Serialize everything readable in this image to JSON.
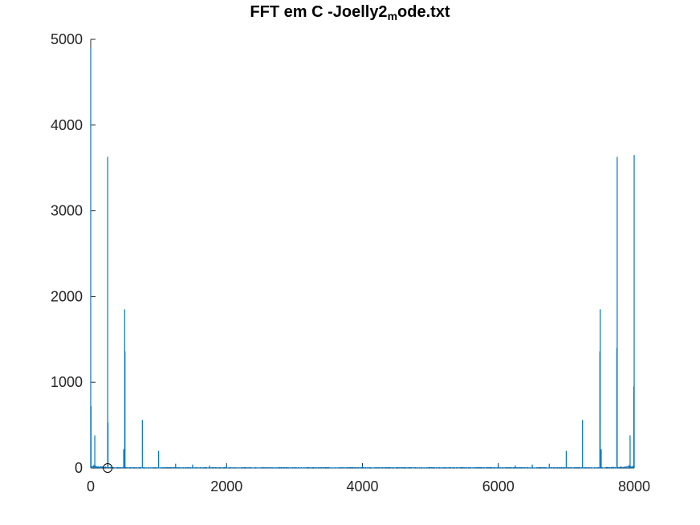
{
  "chart_data": {
    "type": "line",
    "title": "FFT em C -Joelly2",
    "title_subscript": "m",
    "title_suffix": "ode.txt",
    "xlabel": "",
    "ylabel": "",
    "xlim": [
      0,
      8000
    ],
    "ylim": [
      0,
      5000
    ],
    "xticks": [
      0,
      2000,
      4000,
      6000,
      8000
    ],
    "xtick_labels": [
      "0",
      "2000",
      "4000",
      "6000",
      "8000"
    ],
    "yticks": [
      0,
      1000,
      2000,
      3000,
      4000,
      5000
    ],
    "ytick_labels": [
      "0",
      "1000",
      "2000",
      "3000",
      "4000",
      "5000"
    ],
    "grid": false,
    "series_color": "#0072bd",
    "marker": {
      "x": 250,
      "y": 0,
      "shape": "circle"
    },
    "peaks": [
      {
        "x": 0,
        "y": 4900
      },
      {
        "x": 5,
        "y": 720
      },
      {
        "x": 60,
        "y": 380
      },
      {
        "x": 250,
        "y": 3630
      },
      {
        "x": 255,
        "y": 530
      },
      {
        "x": 500,
        "y": 1850
      },
      {
        "x": 505,
        "y": 1360
      },
      {
        "x": 485,
        "y": 220
      },
      {
        "x": 760,
        "y": 560
      },
      {
        "x": 1000,
        "y": 200
      },
      {
        "x": 1250,
        "y": 50
      },
      {
        "x": 1500,
        "y": 40
      },
      {
        "x": 1750,
        "y": 30
      },
      {
        "x": 2000,
        "y": 35
      },
      {
        "x": 4000,
        "y": 30
      },
      {
        "x": 6000,
        "y": 35
      },
      {
        "x": 6250,
        "y": 30
      },
      {
        "x": 6500,
        "y": 40
      },
      {
        "x": 6750,
        "y": 50
      },
      {
        "x": 7000,
        "y": 200
      },
      {
        "x": 7240,
        "y": 560
      },
      {
        "x": 7495,
        "y": 1360
      },
      {
        "x": 7500,
        "y": 1850
      },
      {
        "x": 7515,
        "y": 220
      },
      {
        "x": 7745,
        "y": 1400
      },
      {
        "x": 7750,
        "y": 3630
      },
      {
        "x": 7940,
        "y": 380
      },
      {
        "x": 7995,
        "y": 950
      },
      {
        "x": 8000,
        "y": 3650
      }
    ]
  }
}
